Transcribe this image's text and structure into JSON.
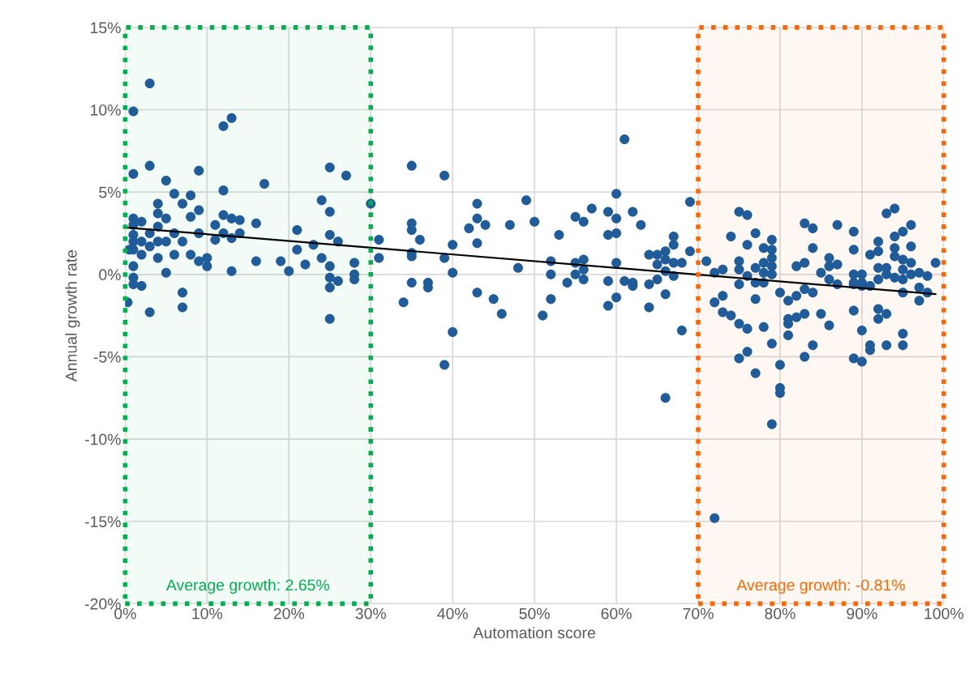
{
  "chart_data": {
    "type": "scatter",
    "xlabel": "Automation score",
    "ylabel": "Annual growth rate",
    "grid": true,
    "marker": "circle",
    "legend": false,
    "xlim": [
      0,
      100
    ],
    "ylim": [
      -20,
      15
    ],
    "xticks": [
      {
        "value": 0,
        "label": "0%"
      },
      {
        "value": 10,
        "label": "10%"
      },
      {
        "value": 20,
        "label": "20%"
      },
      {
        "value": 30,
        "label": "30%"
      },
      {
        "value": 40,
        "label": "40%"
      },
      {
        "value": 50,
        "label": "50%"
      },
      {
        "value": 60,
        "label": "60%"
      },
      {
        "value": 70,
        "label": "70%"
      },
      {
        "value": 80,
        "label": "80%"
      },
      {
        "value": 90,
        "label": "90%"
      },
      {
        "value": 100,
        "label": "100%"
      }
    ],
    "yticks": [
      {
        "value": -20,
        "label": "-20%"
      },
      {
        "value": -15,
        "label": "-15%"
      },
      {
        "value": -10,
        "label": "-10%"
      },
      {
        "value": -5,
        "label": "-5%"
      },
      {
        "value": 0,
        "label": "0%"
      },
      {
        "value": 5,
        "label": "5%"
      },
      {
        "value": 10,
        "label": "10%"
      },
      {
        "value": 15,
        "label": "15%"
      }
    ],
    "series": [
      {
        "color": "#1f5c99",
        "x": [
          0.3,
          1,
          1,
          1,
          1,
          1,
          1,
          1,
          1,
          1,
          1,
          0.5,
          2,
          2,
          2,
          2,
          3,
          3,
          3,
          3,
          3,
          4,
          4,
          4,
          4,
          4,
          5,
          5,
          5,
          5,
          6,
          6,
          6,
          7,
          7,
          7,
          7,
          8,
          8,
          8,
          9,
          9,
          9,
          9,
          10,
          10,
          11,
          11,
          12,
          12,
          12,
          12,
          13,
          13,
          13,
          13,
          14,
          14,
          16,
          16,
          17,
          19,
          20,
          21,
          21,
          22,
          23,
          24,
          24,
          25,
          25,
          25,
          25,
          25,
          25,
          25,
          26,
          26,
          27,
          28,
          28,
          28,
          30,
          31,
          31,
          34,
          35,
          35,
          35,
          35,
          35,
          35,
          36,
          37,
          37,
          39,
          39,
          39,
          40,
          40,
          40,
          42,
          43,
          43,
          43,
          43,
          44,
          45,
          46,
          47,
          48,
          49,
          50,
          51,
          52,
          52,
          52,
          53,
          54,
          55,
          55,
          55,
          56,
          56,
          56,
          56,
          57,
          59,
          59,
          59,
          59,
          60,
          60,
          60,
          60,
          60,
          61,
          61,
          62,
          62,
          62,
          63,
          64,
          64,
          64,
          65,
          65,
          65,
          66,
          66,
          66,
          66,
          66,
          67,
          67,
          67,
          67,
          68,
          68,
          69,
          69,
          71,
          72,
          72,
          72,
          73,
          73,
          73,
          74,
          74,
          75,
          75,
          75,
          75,
          75,
          75,
          76,
          76,
          76,
          76,
          76,
          77,
          77,
          77,
          77,
          77,
          78,
          78,
          78,
          78,
          78,
          79,
          79,
          79,
          79,
          79,
          79,
          79,
          80,
          80,
          80,
          80,
          81,
          81,
          81,
          81,
          82,
          82,
          82,
          83,
          83,
          83,
          83,
          83,
          84,
          84,
          84,
          84,
          85,
          85,
          86,
          86,
          86,
          86,
          87,
          87,
          87,
          89,
          89,
          89,
          89,
          89,
          89,
          89,
          90,
          90,
          90,
          90,
          90,
          91,
          91,
          91,
          91,
          92,
          92,
          92,
          92,
          92,
          92,
          93,
          93,
          93,
          93,
          93,
          94,
          94,
          94,
          94,
          94,
          95,
          95,
          95,
          95,
          95,
          95,
          95,
          96,
          96,
          96,
          96,
          97,
          97,
          97,
          98,
          98,
          99
        ],
        "values": [
          -1.7,
          9.9,
          6.1,
          3.4,
          3,
          2.4,
          2,
          1.5,
          0.5,
          -0.2,
          -0.6,
          1.5,
          2,
          1.2,
          -0.7,
          3.2,
          11.6,
          6.6,
          -2.3,
          2.5,
          1.7,
          4.3,
          3.7,
          2.9,
          2,
          1,
          5.7,
          3.4,
          2,
          0.1,
          4.9,
          2.5,
          1.2,
          4.3,
          2,
          -1.1,
          -2,
          4.8,
          3.5,
          1.2,
          6.3,
          3.9,
          2.5,
          0.8,
          1,
          0.5,
          3,
          2.1,
          9,
          5.1,
          3.6,
          2.5,
          9.5,
          3.4,
          2.2,
          0.2,
          3.3,
          2.5,
          3.1,
          0.8,
          5.5,
          0.8,
          0.2,
          2.7,
          1.5,
          0.6,
          1.8,
          4.5,
          1,
          6.5,
          3.8,
          2.4,
          0.5,
          -0.2,
          -0.8,
          -2.7,
          2,
          -0.4,
          6,
          0.7,
          0,
          -0.3,
          4.3,
          2.1,
          1,
          -1.7,
          6.6,
          3.1,
          2.7,
          1.3,
          1.1,
          -0.5,
          2.1,
          -0.5,
          -0.8,
          6,
          1,
          -5.5,
          1.8,
          0.1,
          -3.5,
          2.8,
          4.3,
          3.4,
          1.9,
          -1.1,
          3,
          -1.5,
          -2.4,
          3,
          0.4,
          4.5,
          3.2,
          -2.5,
          0.8,
          0,
          -1.5,
          2.4,
          -0.5,
          3.5,
          0.7,
          0,
          3.2,
          0.9,
          0.3,
          -0.3,
          4,
          3.8,
          2.4,
          -0.4,
          -1.9,
          4.9,
          3.4,
          2.5,
          0.7,
          -1.4,
          8.2,
          -0.4,
          3.8,
          -0.5,
          -0.7,
          3,
          1.2,
          -0.6,
          -2,
          1.2,
          0.6,
          -0.3,
          1.4,
          0.9,
          0.2,
          -1.2,
          -7.5,
          2.3,
          1.8,
          0.7,
          -0.1,
          0.7,
          -3.4,
          4.4,
          1.4,
          0.8,
          0.1,
          -1.7,
          -14.8,
          0.3,
          -1.3,
          -2.3,
          2.3,
          -2.5,
          3.8,
          0.8,
          0.3,
          -0.6,
          -3,
          -5.1,
          3.6,
          1.8,
          -0.1,
          -3.3,
          -4.7,
          2.5,
          0.4,
          -0.5,
          -1.5,
          -6,
          1.6,
          0.7,
          0.1,
          -0.5,
          -3.2,
          2.1,
          1.5,
          1,
          0.5,
          0,
          -4.2,
          -9.1,
          -1.1,
          -5.5,
          -6.9,
          -7.2,
          -1.6,
          -2.7,
          -3,
          -3.7,
          0.5,
          -1.3,
          -2.6,
          3.1,
          0.7,
          -0.9,
          -2.4,
          -5,
          2.8,
          1.6,
          -1.1,
          -4.3,
          0.1,
          -2.4,
          1,
          0.5,
          -0.3,
          -3.1,
          3,
          0.6,
          -0.6,
          2.6,
          1.5,
          0,
          -0.5,
          -0.6,
          -2.2,
          -5.1,
          0,
          -0.5,
          -0.7,
          -3.4,
          -5.3,
          1.2,
          -0.7,
          -4.3,
          -4.6,
          2,
          1.4,
          0.4,
          -0.3,
          -2.1,
          -2.7,
          3.7,
          0.4,
          0,
          -2.4,
          -4.3,
          4,
          2.3,
          1.6,
          1.1,
          -0.2,
          2.6,
          0.9,
          0.3,
          -0.3,
          -1.1,
          -3.6,
          -4.3,
          3,
          1.7,
          0.7,
          0,
          0.1,
          -0.8,
          -1.6,
          -0.1,
          -1.1,
          0.7
        ]
      },
      {
        "type": "line",
        "color": "#000000",
        "line_style": "solid",
        "marker": "none",
        "x": [
          0,
          99
        ],
        "values": [
          2.85,
          -1.2
        ]
      }
    ],
    "bands": [
      {
        "axis": "x",
        "from": 0,
        "to": 30,
        "label": "Average growth: 2.65%",
        "color": "#00b050"
      },
      {
        "axis": "x",
        "from": 70,
        "to": 100,
        "label": "Average growth: -0.81%",
        "color": "#ff6600"
      }
    ]
  }
}
